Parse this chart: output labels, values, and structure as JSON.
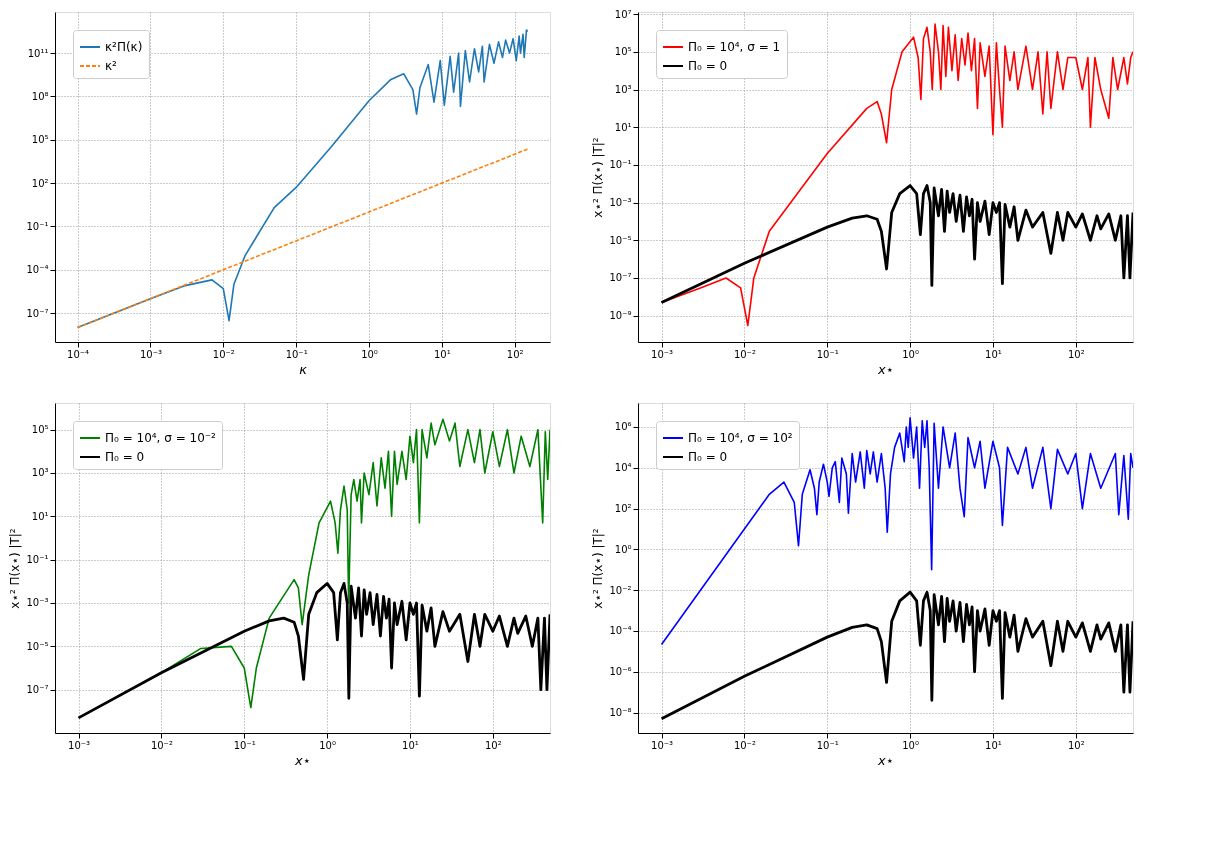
{
  "chart_data": [
    {
      "type": "line",
      "xlabel": "κ",
      "log": "xy",
      "xlim": [
        4.9e-05,
        305
      ],
      "ylim": [
        1e-09,
        70000000000000.0
      ],
      "grid": true,
      "legend": "top left",
      "line_style": "solid",
      "xticks": [
        {
          "value": 0.0001,
          "label": "10⁻⁴"
        },
        {
          "value": 0.001,
          "label": "10⁻³"
        },
        {
          "value": 0.01,
          "label": "10⁻²"
        },
        {
          "value": 0.1,
          "label": "10⁻¹"
        },
        {
          "value": 1,
          "label": "10⁰"
        },
        {
          "value": 10,
          "label": "10¹"
        },
        {
          "value": 100,
          "label": "10²"
        }
      ],
      "yticks": [
        {
          "value": 1e-07,
          "label": "10⁻⁷"
        },
        {
          "value": 0.0001,
          "label": "10⁻⁴"
        },
        {
          "value": 0.1,
          "label": "10⁻¹"
        },
        {
          "value": 100,
          "label": "10²"
        },
        {
          "value": 100000.0,
          "label": "10⁵"
        },
        {
          "value": 100000000.0,
          "label": "10⁸"
        },
        {
          "value": 100000000000.0,
          "label": "10¹¹"
        }
      ],
      "series": [
        {
          "name": "κ²Π(κ)",
          "color": "#1f77b4",
          "x": [
            0.0001,
            0.001,
            0.003,
            0.007,
            0.01,
            0.012,
            0.014,
            0.02,
            0.05,
            0.1,
            0.3,
            1,
            2,
            3,
            4,
            4.5,
            5,
            6.5,
            7.8,
            9.5,
            10.8,
            13,
            14.5,
            17,
            18,
            21,
            24,
            28,
            32,
            36,
            38,
            45,
            52,
            60,
            68,
            75,
            85,
            95,
            105,
            115,
            120,
            130,
            135,
            145,
            150
          ],
          "values": [
            1e-08,
            1e-06,
            8e-06,
            2e-05,
            5e-06,
            3e-08,
            1e-05,
            0.001,
            2,
            50,
            30000.0,
            50000000.0,
            1500000000.0,
            3700000000.0,
            300000000.0,
            6000000.0,
            400000000.0,
            16000000000.0,
            40000000.0,
            30000000000.0,
            25000000.0,
            60000000000.0,
            200000000.0,
            100000000000.0,
            20000000.0,
            150000000000.0,
            1000000000.0,
            200000000000.0,
            5000000000.0,
            300000000000.0,
            1000000000.0,
            400000000000.0,
            20000000000.0,
            600000000000.0,
            50000000000.0,
            800000000000.0,
            100000000000.0,
            1000000000000.0,
            30000000000.0,
            1500000000000.0,
            100000000000.0,
            2000000000000.0,
            50000000000.0,
            4000000000000.0,
            3000000000000.0
          ]
        },
        {
          "name": "κ²",
          "color": "#ff7f0e",
          "line_style": "dashed",
          "x": [
            0.0001,
            0.001,
            0.01,
            0.1,
            1,
            10,
            150
          ],
          "values": [
            1e-08,
            1e-06,
            0.0001,
            0.01,
            1,
            100,
            22500
          ]
        }
      ]
    },
    {
      "type": "line",
      "xlabel": "x⋆",
      "ylabel": "x⋆² Π(x⋆) |T|²",
      "log": "xy",
      "xlim": [
        0.00052,
        490
      ],
      "ylim": [
        4e-11,
        13000000.0
      ],
      "grid": true,
      "legend": "top left",
      "line_style": "solid",
      "xticks": [
        {
          "value": 0.001,
          "label": "10⁻³"
        },
        {
          "value": 0.01,
          "label": "10⁻²"
        },
        {
          "value": 0.1,
          "label": "10⁻¹"
        },
        {
          "value": 1,
          "label": "10⁰"
        },
        {
          "value": 10,
          "label": "10¹"
        },
        {
          "value": 100,
          "label": "10²"
        }
      ],
      "yticks": [
        {
          "value": 1e-09,
          "label": "10⁻⁹"
        },
        {
          "value": 1e-07,
          "label": "10⁻⁷"
        },
        {
          "value": 1e-05,
          "label": "10⁻⁵"
        },
        {
          "value": 0.001,
          "label": "10⁻³"
        },
        {
          "value": 0.1,
          "label": "10⁻¹"
        },
        {
          "value": 10,
          "label": "10¹"
        },
        {
          "value": 1000,
          "label": "10³"
        },
        {
          "value": 100000.0,
          "label": "10⁵"
        },
        {
          "value": 10000000.0,
          "label": "10⁷"
        }
      ],
      "series": [
        {
          "name": "Π₀ = 10⁴, σ = 1",
          "color": "#ff0000",
          "x": [
            0.001,
            0.003,
            0.006,
            0.009,
            0.011,
            0.013,
            0.02,
            0.1,
            0.3,
            0.4,
            0.45,
            0.52,
            0.6,
            0.8,
            1.1,
            1.25,
            1.35,
            1.45,
            1.6,
            1.75,
            1.85,
            2.0,
            2.2,
            2.35,
            2.5,
            2.7,
            2.9,
            3.2,
            3.5,
            3.8,
            4.2,
            4.6,
            5,
            5.5,
            6,
            6.5,
            7,
            8,
            9,
            10,
            11,
            12,
            13,
            14,
            16,
            18,
            20,
            25,
            30,
            35,
            40,
            45,
            50,
            60,
            70,
            80,
            100,
            120,
            140,
            150,
            170,
            200,
            250,
            280,
            320,
            380,
            420,
            460,
            490
          ],
          "values": [
            5e-09,
            3e-08,
            1e-07,
            3e-08,
            3e-10,
            1e-07,
            3e-05,
            0.4,
            100,
            230,
            50,
            1.5,
            1000,
            100000.0,
            600000.0,
            50000.0,
            300,
            500000.0,
            2000000.0,
            100000.0,
            1000,
            3000000.0,
            100000.0,
            1000,
            2500000.0,
            5000,
            2000000.0,
            10000.0,
            800000.0,
            3000,
            500000.0,
            20000.0,
            1000000.0,
            10000.0,
            500000.0,
            100,
            300000.0,
            5000,
            200000.0,
            4,
            300000.0,
            1000,
            10,
            200000.0,
            3000,
            100000.0,
            1000,
            200000.0,
            1000,
            100000.0,
            50,
            100000.0,
            100,
            100000.0,
            1000,
            50000.0,
            50000.0,
            1000,
            50000.0,
            10,
            50000.0,
            1000,
            30,
            50000.0,
            1000,
            50000.0,
            2000,
            50000.0,
            100000.0
          ]
        },
        {
          "name": "Π₀ = 0",
          "color": "#000000",
          "x": [
            0.001,
            0.01,
            0.1,
            0.2,
            0.3,
            0.4,
            0.45,
            0.52,
            0.6,
            0.75,
            1.0,
            1.2,
            1.33,
            1.45,
            1.6,
            1.75,
            1.83,
            1.95,
            2.2,
            2.4,
            2.6,
            2.8,
            3.0,
            3.3,
            3.6,
            4.0,
            4.4,
            4.8,
            5.2,
            5.6,
            6.0,
            6.5,
            7,
            8,
            9,
            10,
            11,
            12,
            13,
            14,
            16,
            18,
            20,
            25,
            30,
            40,
            50,
            60,
            70,
            80,
            100,
            120,
            150,
            180,
            200,
            250,
            300,
            350,
            380,
            420,
            450,
            490
          ],
          "values": [
            5e-09,
            6e-07,
            5e-05,
            0.00015,
            0.0002,
            0.00013,
            3e-05,
            3e-07,
            0.0003,
            0.003,
            0.008,
            0.003,
            2e-05,
            0.003,
            0.008,
            0.001,
            4e-08,
            0.006,
            0.0002,
            0.005,
            3e-05,
            0.004,
            0.0003,
            0.003,
            0.0001,
            0.0025,
            3e-05,
            0.002,
            0.0002,
            0.0015,
            1e-06,
            0.001,
            0.0001,
            0.0012,
            2e-05,
            0.001,
            0.0003,
            0.001,
            5e-08,
            0.0008,
            5e-05,
            0.0006,
            1e-05,
            0.0004,
            5e-05,
            0.0003,
            2e-06,
            0.0003,
            1e-05,
            0.0003,
            5e-05,
            0.00025,
            1e-05,
            0.0002,
            4e-05,
            0.00025,
            1e-05,
            0.0002,
            1e-07,
            0.0002,
            1e-07,
            0.0003
          ]
        }
      ]
    },
    {
      "type": "line",
      "xlabel": "x⋆",
      "ylabel": "x⋆² Π(x⋆) |T|²",
      "log": "xy",
      "xlim": [
        0.00052,
        490
      ],
      "ylim": [
        1e-09,
        1700000.0
      ],
      "grid": true,
      "legend": "top left",
      "line_style": "solid",
      "xticks": [
        {
          "value": 0.001,
          "label": "10⁻³"
        },
        {
          "value": 0.01,
          "label": "10⁻²"
        },
        {
          "value": 0.1,
          "label": "10⁻¹"
        },
        {
          "value": 1,
          "label": "10⁰"
        },
        {
          "value": 10,
          "label": "10¹"
        },
        {
          "value": 100,
          "label": "10²"
        }
      ],
      "yticks": [
        {
          "value": 1e-07,
          "label": "10⁻⁷"
        },
        {
          "value": 1e-05,
          "label": "10⁻⁵"
        },
        {
          "value": 0.001,
          "label": "10⁻³"
        },
        {
          "value": 0.1,
          "label": "10⁻¹"
        },
        {
          "value": 10,
          "label": "10¹"
        },
        {
          "value": 1000,
          "label": "10³"
        },
        {
          "value": 100000.0,
          "label": "10⁵"
        }
      ],
      "series": [
        {
          "name": "Π₀ = 10⁴, σ = 10⁻²",
          "color": "#008000",
          "x": [
            0.001,
            0.01,
            0.03,
            0.07,
            0.1,
            0.12,
            0.14,
            0.2,
            0.4,
            0.45,
            0.5,
            0.6,
            0.8,
            1.1,
            1.25,
            1.35,
            1.45,
            1.6,
            1.75,
            1.82,
            1.95,
            2.1,
            2.3,
            2.5,
            2.6,
            2.8,
            3.2,
            3.6,
            4,
            4.5,
            5,
            5.5,
            6,
            6.5,
            7,
            8,
            9,
            10,
            11,
            12,
            13,
            14,
            16,
            18,
            20,
            25,
            30,
            35,
            40,
            50,
            60,
            70,
            80,
            100,
            120,
            150,
            180,
            220,
            280,
            350,
            400,
            430,
            460,
            490
          ],
          "values": [
            5e-09,
            6e-07,
            8e-06,
            1e-05,
            1e-06,
            1.5e-08,
            1e-06,
            0.0002,
            0.012,
            0.005,
            0.0001,
            0.02,
            5,
            50,
            5,
            0.2,
            20,
            250,
            20,
            0.001,
            100,
            500,
            50,
            500,
            5,
            1000,
            100,
            3000,
            30,
            5000,
            200,
            10000.0,
            10,
            10000.0,
            300,
            10000.0,
            500,
            50000.0,
            3000,
            100000.0,
            5,
            100000.0,
            5000,
            200000.0,
            20000.0,
            300000.0,
            30000.0,
            200000.0,
            2000,
            100000.0,
            3000,
            100000.0,
            1000,
            80000.0,
            2000,
            100000.0,
            1000,
            50000.0,
            2000,
            100000.0,
            5,
            80000.0,
            500,
            100000.0
          ]
        },
        {
          "name": "Π₀ = 0",
          "color": "#000000",
          "x": [
            0.001,
            0.01,
            0.1,
            0.2,
            0.3,
            0.4,
            0.45,
            0.52,
            0.6,
            0.75,
            1.0,
            1.2,
            1.33,
            1.45,
            1.6,
            1.75,
            1.83,
            1.95,
            2.2,
            2.4,
            2.6,
            2.8,
            3.0,
            3.3,
            3.6,
            4.0,
            4.4,
            4.8,
            5.2,
            5.6,
            6.0,
            6.5,
            7,
            8,
            9,
            10,
            11,
            12,
            13,
            14,
            16,
            18,
            20,
            25,
            30,
            40,
            50,
            60,
            70,
            80,
            100,
            120,
            150,
            180,
            200,
            250,
            300,
            350,
            380,
            420,
            450,
            490
          ],
          "values": [
            5e-09,
            6e-07,
            5e-05,
            0.00015,
            0.0002,
            0.00013,
            3e-05,
            3e-07,
            0.0003,
            0.003,
            0.008,
            0.003,
            2e-05,
            0.003,
            0.008,
            0.001,
            4e-08,
            0.006,
            0.0002,
            0.005,
            3e-05,
            0.004,
            0.0003,
            0.003,
            0.0001,
            0.0025,
            3e-05,
            0.002,
            0.0002,
            0.0015,
            1e-06,
            0.001,
            0.0001,
            0.0012,
            2e-05,
            0.001,
            0.0003,
            0.001,
            5e-08,
            0.0008,
            5e-05,
            0.0006,
            1e-05,
            0.0004,
            5e-05,
            0.0003,
            2e-06,
            0.0003,
            1e-05,
            0.0003,
            5e-05,
            0.00025,
            1e-05,
            0.0002,
            4e-05,
            0.00025,
            1e-05,
            0.0002,
            1e-07,
            0.0002,
            1e-07,
            0.0003
          ]
        }
      ]
    },
    {
      "type": "line",
      "xlabel": "x⋆",
      "ylabel": "x⋆² Π(x⋆) |T|²",
      "log": "xy",
      "xlim": [
        0.00052,
        490
      ],
      "ylim": [
        1e-09,
        15000000.0
      ],
      "grid": true,
      "legend": "top left",
      "line_style": "solid",
      "xticks": [
        {
          "value": 0.001,
          "label": "10⁻³"
        },
        {
          "value": 0.01,
          "label": "10⁻²"
        },
        {
          "value": 0.1,
          "label": "10⁻¹"
        },
        {
          "value": 1,
          "label": "10⁰"
        },
        {
          "value": 10,
          "label": "10¹"
        },
        {
          "value": 100,
          "label": "10²"
        }
      ],
      "yticks": [
        {
          "value": 1e-08,
          "label": "10⁻⁸"
        },
        {
          "value": 1e-06,
          "label": "10⁻⁶"
        },
        {
          "value": 0.0001,
          "label": "10⁻⁴"
        },
        {
          "value": 0.01,
          "label": "10⁻²"
        },
        {
          "value": 1,
          "label": "10⁰"
        },
        {
          "value": 100,
          "label": "10²"
        },
        {
          "value": 10000.0,
          "label": "10⁴"
        },
        {
          "value": 1000000.0,
          "label": "10⁶"
        }
      ],
      "series": [
        {
          "name": "Π₀ = 10⁴, σ = 10²",
          "color": "#0000ff",
          "x": [
            0.001,
            0.01,
            0.02,
            0.03,
            0.04,
            0.045,
            0.05,
            0.062,
            0.07,
            0.075,
            0.08,
            0.09,
            0.1,
            0.105,
            0.115,
            0.125,
            0.14,
            0.15,
            0.17,
            0.18,
            0.2,
            0.22,
            0.25,
            0.28,
            0.3,
            0.33,
            0.36,
            0.4,
            0.45,
            0.5,
            0.53,
            0.58,
            0.65,
            0.75,
            0.85,
            0.9,
            0.95,
            1.0,
            1.1,
            1.2,
            1.3,
            1.4,
            1.5,
            1.6,
            1.7,
            1.82,
            1.95,
            2.2,
            2.5,
            3,
            3.5,
            4,
            4.5,
            5,
            6,
            7,
            8,
            10,
            12,
            13,
            15,
            20,
            25,
            30,
            40,
            50,
            60,
            80,
            100,
            120,
            150,
            200,
            300,
            330,
            380,
            430,
            460,
            490
          ],
          "values": [
            2.2e-05,
            10,
            500,
            2000,
            200,
            1.5,
            500,
            8000,
            1000,
            50,
            2000,
            15000.0,
            2000,
            400,
            10000.0,
            20000.0,
            200,
            30000.0,
            5000,
            60,
            50000.0,
            2000,
            60000.0,
            1000,
            70000.0,
            5000,
            60000.0,
            2000,
            50000.0,
            1000,
            7,
            5000,
            100000.0,
            500000.0,
            20000.0,
            1000000.0,
            100000.0,
            2800000.0,
            30000.0,
            1000000.0,
            1000,
            2000000.0,
            100000.0,
            2000000.0,
            10000.0,
            0.1,
            1500000.0,
            1000,
            1000000.0,
            10000.0,
            500000.0,
            1000,
            40,
            300000.0,
            10000.0,
            200000.0,
            1000,
            200000.0,
            10000.0,
            15,
            100000.0,
            5000,
            100000.0,
            1000,
            100000.0,
            100,
            80000.0,
            5000,
            50000.0,
            100,
            50000.0,
            1000,
            50000.0,
            50,
            40000.0,
            30,
            50000.0,
            10000.0
          ]
        },
        {
          "name": "Π₀ = 0",
          "color": "#000000",
          "x": [
            0.001,
            0.01,
            0.1,
            0.2,
            0.3,
            0.4,
            0.45,
            0.52,
            0.6,
            0.75,
            1.0,
            1.2,
            1.33,
            1.45,
            1.6,
            1.75,
            1.83,
            1.95,
            2.2,
            2.4,
            2.6,
            2.8,
            3.0,
            3.3,
            3.6,
            4.0,
            4.4,
            4.8,
            5.2,
            5.6,
            6.0,
            6.5,
            7,
            8,
            9,
            10,
            11,
            12,
            13,
            14,
            16,
            18,
            20,
            25,
            30,
            40,
            50,
            60,
            70,
            80,
            100,
            120,
            150,
            180,
            200,
            250,
            300,
            350,
            380,
            420,
            450,
            490
          ],
          "values": [
            5e-09,
            6e-07,
            5e-05,
            0.00015,
            0.0002,
            0.00013,
            3e-05,
            3e-07,
            0.0003,
            0.003,
            0.008,
            0.003,
            2e-05,
            0.003,
            0.008,
            0.001,
            4e-08,
            0.006,
            0.0002,
            0.005,
            3e-05,
            0.004,
            0.0003,
            0.003,
            0.0001,
            0.0025,
            3e-05,
            0.002,
            0.0002,
            0.0015,
            1e-06,
            0.001,
            0.0001,
            0.0012,
            2e-05,
            0.001,
            0.0003,
            0.001,
            5e-08,
            0.0008,
            5e-05,
            0.0006,
            1e-05,
            0.0004,
            5e-05,
            0.0003,
            2e-06,
            0.0003,
            1e-05,
            0.0003,
            5e-05,
            0.00025,
            1e-05,
            0.0002,
            4e-05,
            0.00025,
            1e-05,
            0.0002,
            1e-07,
            0.0002,
            1e-07,
            0.0003
          ]
        }
      ]
    }
  ]
}
